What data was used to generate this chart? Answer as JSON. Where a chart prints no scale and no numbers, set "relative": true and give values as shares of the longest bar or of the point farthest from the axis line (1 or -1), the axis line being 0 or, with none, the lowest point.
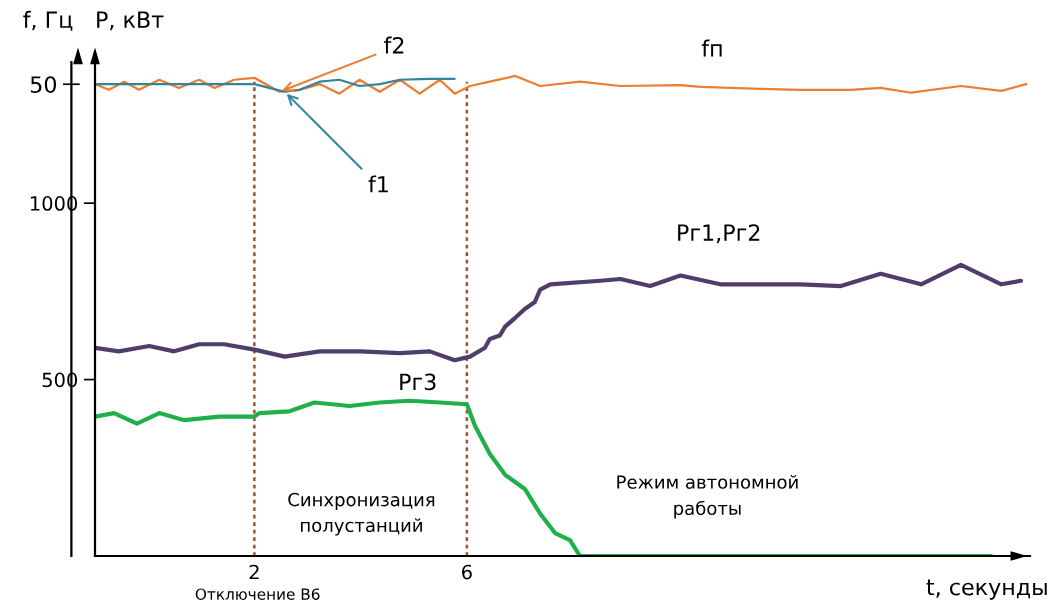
{
  "chart_data": [
    {
      "type": "line",
      "relative": true,
      "ylabel": "f, Гц",
      "xlim": [
        -1.0,
        16.6
      ],
      "grid": false,
      "legend": false,
      "marker": "none",
      "line_style": "solid",
      "series": [
        {
          "name": "f2",
          "color": "#ed7d31",
          "x": [
            -1.0,
            -0.74,
            -0.45,
            -0.17,
            0.21,
            0.58,
            0.96,
            1.25,
            1.62,
            2.0,
            2.47,
            2.85,
            3.23,
            3.6,
            3.98,
            4.36,
            4.74,
            5.11,
            5.49,
            5.77,
            6.06,
            6.43,
            6.91,
            7.38,
            8.13,
            8.89,
            10.02,
            10.4,
            11.53,
            12.28,
            13.23,
            13.79,
            14.36,
            15.3,
            16.06,
            16.53
          ],
          "values": [
            0.983,
            0.971,
            0.988,
            0.971,
            0.992,
            0.975,
            0.992,
            0.975,
            0.992,
            0.996,
            0.967,
            0.971,
            0.983,
            0.963,
            0.992,
            0.967,
            0.992,
            0.963,
            0.992,
            0.963,
            0.979,
            0.988,
            1.0,
            0.979,
            0.988,
            0.979,
            0.981,
            0.977,
            0.973,
            0.971,
            0.971,
            0.975,
            0.965,
            0.979,
            0.969,
            0.983
          ]
        },
        {
          "name": "f1",
          "color": "#31859c",
          "x": [
            -1.0,
            2.0,
            2.28,
            2.57,
            2.85,
            3.23,
            3.6,
            3.98,
            4.36,
            4.74,
            5.3,
            5.77
          ],
          "values": [
            0.983,
            0.983,
            0.975,
            0.967,
            0.971,
            0.988,
            0.992,
            0.979,
            0.983,
            0.992,
            0.994,
            0.994
          ]
        }
      ],
      "ref_lines": [
        {
          "axis": "x",
          "value": 2,
          "color": "#a0522d",
          "line_style": "dotted"
        },
        {
          "axis": "x",
          "value": 6,
          "color": "#a0522d",
          "line_style": "dotted"
        }
      ],
      "annotations": [
        "50",
        {
          "text": "fп",
          "x": 10.02,
          "y": 0.981
        }
      ]
    },
    {
      "type": "line",
      "xlabel": "t, секунды",
      "ylabel": "P, кВт",
      "xlim": [
        -1.0,
        16.6
      ],
      "xticks": [
        2,
        6
      ],
      "ylim": [
        0,
        1400
      ],
      "yticks": [
        500,
        1000
      ],
      "grid": false,
      "legend": false,
      "marker": "none",
      "line_style": "solid",
      "series": [
        {
          "name": "Pг1,Pг2",
          "color": "#4f3d6b",
          "x": [
            -1.0,
            -0.55,
            0.02,
            0.49,
            0.96,
            1.43,
            2.0,
            2.57,
            3.23,
            3.98,
            4.74,
            5.3,
            5.77,
            6.06,
            6.34,
            6.43,
            6.62,
            6.72,
            6.91,
            7.09,
            7.28,
            7.38,
            7.57,
            8.51,
            8.89,
            9.45,
            10.02,
            10.77,
            11.53,
            12.28,
            13.04,
            13.79,
            14.55,
            15.3,
            16.06,
            16.43
          ],
          "values": [
            590,
            580,
            595,
            580,
            600,
            600,
            585,
            565,
            580,
            580,
            575,
            580,
            555,
            565,
            590,
            615,
            625,
            650,
            675,
            700,
            720,
            755,
            770,
            780,
            785,
            765,
            795,
            770,
            770,
            770,
            765,
            800,
            770,
            825,
            770,
            780
          ]
        },
        {
          "name": "Pг3",
          "color": "#1fb04b",
          "x": [
            -1.0,
            -0.64,
            -0.21,
            0.21,
            0.68,
            1.34,
            2.0,
            2.09,
            2.66,
            3.13,
            3.79,
            4.36,
            4.92,
            5.49,
            6.0,
            6.15,
            6.43,
            6.72,
            7.09,
            7.38,
            7.66,
            7.94,
            8.13,
            8.51,
            15.87
          ],
          "values": [
            395,
            405,
            375,
            405,
            385,
            395,
            395,
            405,
            410,
            435,
            425,
            435,
            440,
            435,
            430,
            370,
            290,
            230,
            190,
            120,
            65,
            45,
            0,
            0,
            0
          ]
        }
      ],
      "annotations": [
        "Отключение В6",
        "Синхронизация\nполустанций",
        "Режим автономной\nработы"
      ]
    }
  ]
}
